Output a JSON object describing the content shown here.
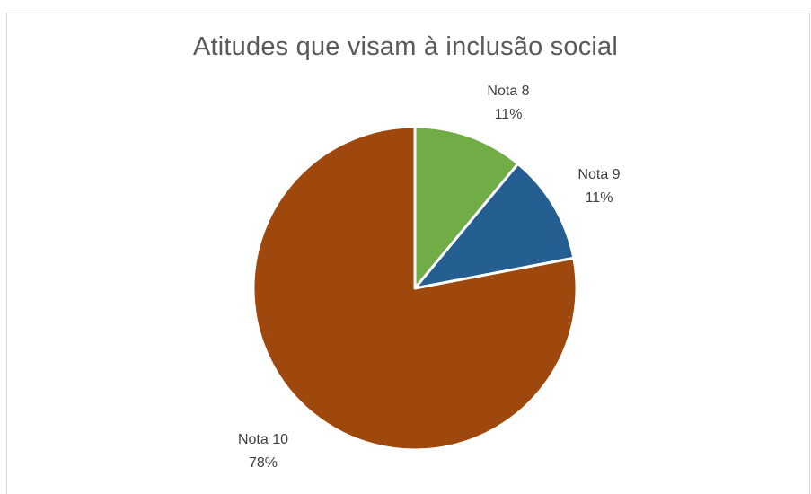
{
  "chart_data": {
    "type": "pie",
    "title": "Atitudes que visam à inclusão social",
    "slices": [
      {
        "label": "Nota 8",
        "percent_label": "11%",
        "value": 11,
        "color": "#70ad47"
      },
      {
        "label": "Nota 9",
        "percent_label": "11%",
        "value": 11,
        "color": "#255e91"
      },
      {
        "label": "Nota 10",
        "percent_label": "78%",
        "value": 78,
        "color": "#9e480e"
      }
    ],
    "legend": "none",
    "start_angle": "12 o'clock, clockwise"
  }
}
